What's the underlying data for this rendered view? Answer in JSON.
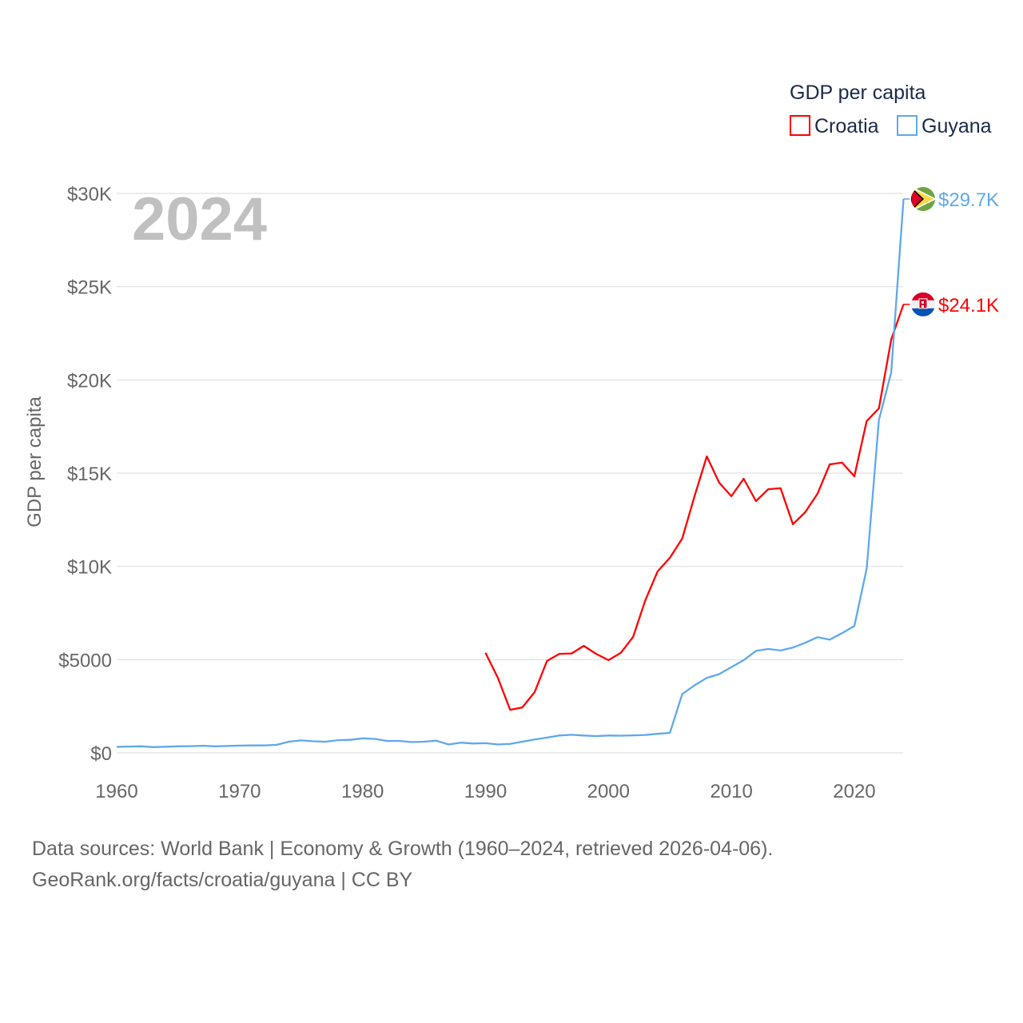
{
  "chart_data": {
    "type": "line",
    "title": "GDP per capita",
    "ylabel": "GDP per capita",
    "xlabel": "",
    "year_label": "2024",
    "xlim": [
      1960,
      2024
    ],
    "ylim": [
      0,
      30000
    ],
    "x_ticks": [
      1960,
      1970,
      1980,
      1990,
      2000,
      2010,
      2020
    ],
    "x_tick_labels": [
      "1960",
      "1970",
      "1980",
      "1990",
      "2000",
      "2010",
      "2020"
    ],
    "y_ticks": [
      0,
      5000,
      10000,
      15000,
      20000,
      25000,
      30000
    ],
    "y_tick_labels": [
      "$0",
      "$5000",
      "$10K",
      "$15K",
      "$20K",
      "$25K",
      "$30K"
    ],
    "grid": true,
    "legend": {
      "title": "GDP per capita",
      "placement": "top-right"
    },
    "series": [
      {
        "name": "Croatia",
        "color": "#ff0000",
        "end_label": "$24.1K",
        "flag": "croatia-flag",
        "x": [
          1990,
          1991,
          1992,
          1993,
          1994,
          1995,
          1996,
          1997,
          1998,
          1999,
          2000,
          2001,
          2002,
          2003,
          2004,
          2005,
          2006,
          2007,
          2008,
          2009,
          2010,
          2011,
          2012,
          2013,
          2014,
          2015,
          2016,
          2017,
          2018,
          2019,
          2020,
          2021,
          2022,
          2023,
          2024
        ],
        "values": [
          5360,
          4030,
          2310,
          2440,
          3260,
          4930,
          5310,
          5330,
          5740,
          5310,
          4970,
          5360,
          6210,
          8190,
          9730,
          10460,
          11490,
          13760,
          15900,
          14490,
          13760,
          14700,
          13500,
          14140,
          14190,
          12260,
          12900,
          13890,
          15470,
          15560,
          14830,
          17790,
          18470,
          22160,
          24050
        ]
      },
      {
        "name": "Guyana",
        "color": "#5ea8ed",
        "end_label": "$29.7K",
        "flag": "guyana-flag",
        "x": [
          1960,
          1961,
          1962,
          1963,
          1964,
          1965,
          1966,
          1967,
          1968,
          1969,
          1970,
          1971,
          1972,
          1973,
          1974,
          1975,
          1976,
          1977,
          1978,
          1979,
          1980,
          1981,
          1982,
          1983,
          1984,
          1985,
          1986,
          1987,
          1988,
          1989,
          1990,
          1991,
          1992,
          1993,
          1994,
          1995,
          1996,
          1997,
          1998,
          1999,
          2000,
          2001,
          2002,
          2003,
          2004,
          2005,
          2006,
          2007,
          2008,
          2009,
          2010,
          2011,
          2012,
          2013,
          2014,
          2015,
          2016,
          2017,
          2018,
          2019,
          2020,
          2021,
          2022,
          2023,
          2024
        ],
        "values": [
          320,
          340,
          350,
          310,
          330,
          350,
          360,
          380,
          350,
          370,
          390,
          400,
          400,
          430,
          600,
          670,
          620,
          600,
          680,
          700,
          780,
          750,
          640,
          640,
          580,
          600,
          650,
          450,
          550,
          500,
          520,
          450,
          480,
          600,
          720,
          820,
          930,
          970,
          930,
          900,
          930,
          920,
          940,
          960,
          1020,
          1070,
          3150,
          3620,
          4020,
          4220,
          4600,
          4970,
          5470,
          5570,
          5490,
          5650,
          5900,
          6200,
          6070,
          6420,
          6800,
          9880,
          17850,
          20400,
          29700
        ]
      }
    ]
  },
  "footer": {
    "line1": "Data sources: World Bank | Economy & Growth (1960–2024, retrieved 2026-04-06).",
    "line2": "GeoRank.org/facts/croatia/guyana | CC BY"
  }
}
